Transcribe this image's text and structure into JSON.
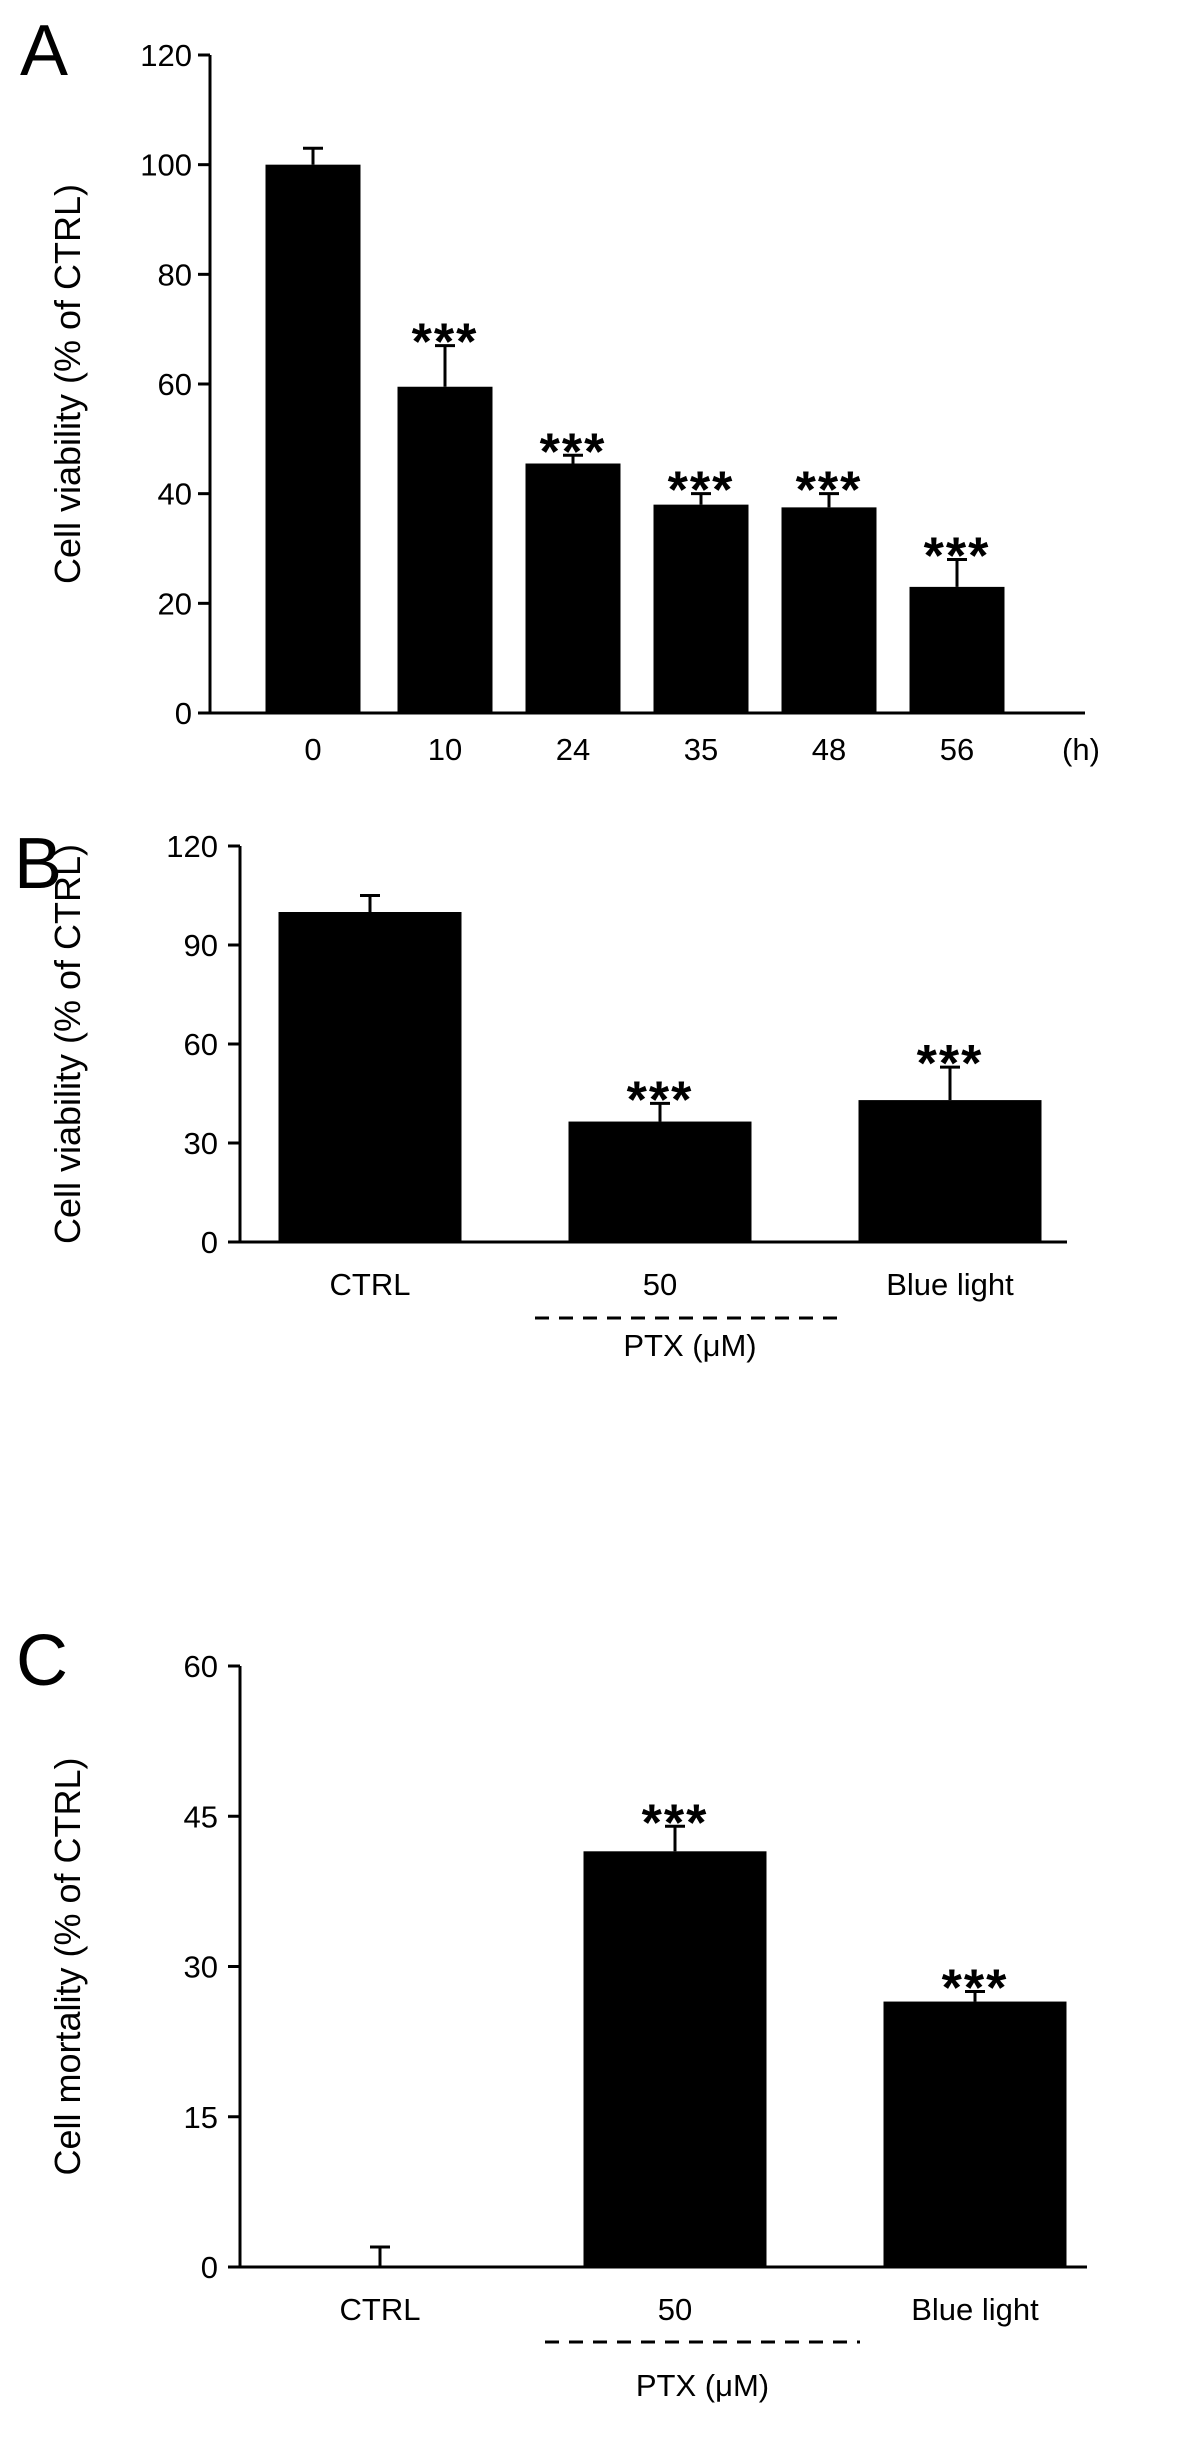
{
  "chart_data": [
    {
      "panel": "A",
      "type": "bar",
      "ylabel": "Cell viability (% of CTRL)",
      "ylim": [
        0,
        120
      ],
      "yticks": [
        0,
        20,
        40,
        60,
        80,
        100,
        120
      ],
      "categories": [
        "0",
        "10",
        "24",
        "35",
        "48",
        "56"
      ],
      "xunit": "(h)",
      "values": [
        100,
        59.5,
        45.5,
        38,
        37.5,
        23
      ],
      "errors": [
        3,
        7.5,
        1.5,
        2,
        2.5,
        5
      ],
      "annotations": [
        "",
        "***",
        "***",
        "***",
        "***",
        "***"
      ]
    },
    {
      "panel": "B",
      "type": "bar",
      "ylabel": "Cell viability (% of CTRL)",
      "ylim": [
        0,
        120
      ],
      "yticks": [
        0,
        30,
        60,
        90,
        120
      ],
      "categories": [
        "CTRL",
        "50",
        "Blue light"
      ],
      "group_label": "PTX (μM)",
      "values": [
        100,
        36.5,
        43
      ],
      "errors": [
        5,
        5.5,
        10
      ],
      "annotations": [
        "",
        "***",
        "***"
      ]
    },
    {
      "panel": "C",
      "type": "bar",
      "ylabel": "Cell mortality (% of CTRL)",
      "ylim": [
        0,
        60
      ],
      "yticks": [
        0,
        15,
        30,
        45,
        60
      ],
      "categories": [
        "CTRL",
        "50",
        "Blue light"
      ],
      "group_label": "PTX (μM)",
      "values": [
        0,
        41.5,
        26.5
      ],
      "errors": [
        2,
        2.5,
        1
      ],
      "annotations": [
        "",
        "***",
        "***"
      ]
    }
  ]
}
